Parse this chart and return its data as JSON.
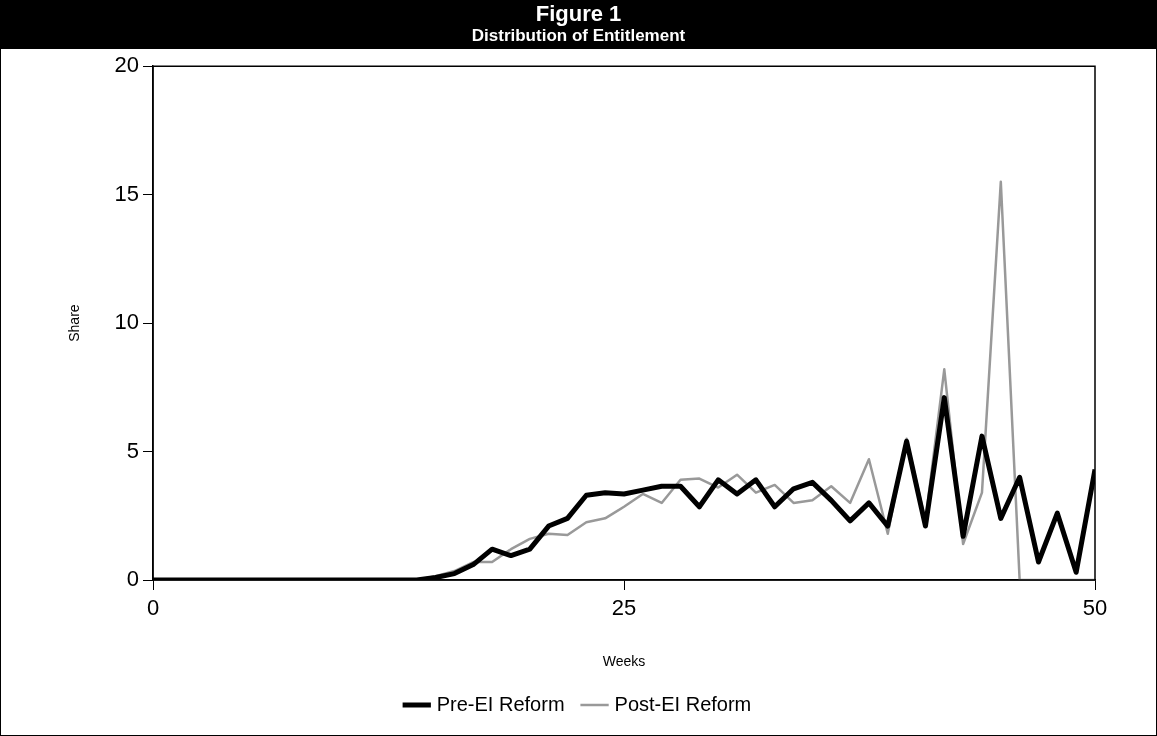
{
  "chart_data": {
    "type": "line",
    "title": "Figure 1",
    "subtitle": "Distribution of Entitlement",
    "xlabel": "Weeks",
    "ylabel": "Share",
    "x": [
      0,
      1,
      2,
      3,
      4,
      5,
      6,
      7,
      8,
      9,
      10,
      11,
      12,
      13,
      14,
      15,
      16,
      17,
      18,
      19,
      20,
      21,
      22,
      23,
      24,
      25,
      26,
      27,
      28,
      29,
      30,
      31,
      32,
      33,
      34,
      35,
      36,
      37,
      38,
      39,
      40,
      41,
      42,
      43,
      44,
      45,
      46,
      47,
      48,
      49,
      50
    ],
    "series": [
      {
        "name": "Pre-EI Reform",
        "color": "#000000",
        "values": [
          0,
          0,
          0,
          0,
          0,
          0,
          0,
          0,
          0,
          0,
          0,
          0,
          0,
          0,
          0,
          0.1,
          0.25,
          0.6,
          1.2,
          0.95,
          1.2,
          2.1,
          2.4,
          3.3,
          3.4,
          3.35,
          3.5,
          3.65,
          3.65,
          2.85,
          3.9,
          3.35,
          3.9,
          2.85,
          3.55,
          3.8,
          3.1,
          2.3,
          3.0,
          2.1,
          5.4,
          2.1,
          7.1,
          1.7,
          5.6,
          2.4,
          4.0,
          0.7,
          2.6,
          0.3,
          4.3
        ]
      },
      {
        "name": "Post-EI Reform",
        "color": "#999999",
        "values": [
          0,
          0,
          0,
          0,
          0,
          0,
          0,
          0,
          0,
          0,
          0,
          0,
          0,
          0,
          0,
          0.15,
          0.35,
          0.7,
          0.7,
          1.2,
          1.6,
          1.8,
          1.75,
          2.25,
          2.4,
          2.85,
          3.35,
          3.0,
          3.9,
          3.95,
          3.6,
          4.1,
          3.4,
          3.7,
          3.0,
          3.1,
          3.65,
          3.0,
          4.7,
          1.8,
          5.5,
          2.3,
          8.2,
          1.4,
          3.4,
          15.5,
          0,
          0,
          0,
          0,
          0
        ]
      }
    ],
    "xlim": [
      0,
      50
    ],
    "xticks": [
      0,
      25,
      50
    ],
    "ylim": [
      0,
      20
    ],
    "yticks": [
      0,
      5,
      10,
      15,
      20
    ],
    "grid": false,
    "legend": "bottom",
    "marker": "none",
    "line_style": "solid"
  }
}
